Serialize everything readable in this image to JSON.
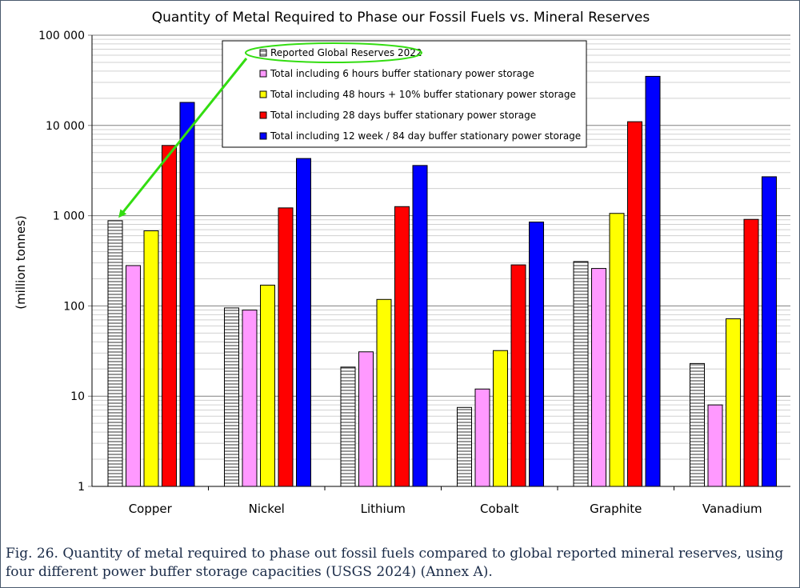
{
  "caption": "Fig. 26. Quantity of metal required to phase out fossil fuels compared to global reported mineral reserves, using four different power buffer storage capacities (USGS 2024) (Annex A).",
  "chart_data": {
    "type": "bar",
    "title": "Quantity of Metal Required to Phase our Fossil Fuels vs. Mineral Reserves",
    "xlabel": "",
    "ylabel": "(million tonnes)",
    "yscale": "log",
    "ylim": [
      1,
      100000
    ],
    "ticks": [
      "1",
      "10",
      "100",
      "1 000",
      "10 000",
      "100 000"
    ],
    "grid": true,
    "legend_position": "top-center",
    "categories": [
      "Copper",
      "Nickel",
      "Lithium",
      "Cobalt",
      "Graphite",
      "Vanadium"
    ],
    "series": [
      {
        "name": "Reported Global Reserves 2022",
        "color": "#ffffff",
        "pattern": "horizontal-stripes",
        "values": [
          880,
          95,
          21,
          7.5,
          310,
          23
        ]
      },
      {
        "name": "Total including 6 hours buffer stationary power storage",
        "color": "#ff99ff",
        "values": [
          280,
          90,
          31,
          12,
          260,
          8
        ]
      },
      {
        "name": "Total including 48 hours + 10% buffer stationary power storage",
        "color": "#ffff00",
        "values": [
          680,
          170,
          118,
          32,
          1060,
          72
        ]
      },
      {
        "name": "Total including 28 days buffer stationary power storage",
        "color": "#ff0000",
        "values": [
          6000,
          1220,
          1260,
          285,
          11000,
          910
        ]
      },
      {
        "name": "Total including 12 week / 84 day buffer stationary power storage",
        "color": "#0000ff",
        "values": [
          18000,
          4300,
          3600,
          850,
          35000,
          2700
        ]
      }
    ],
    "annotation": {
      "shape": "green-ellipse-and-arrow",
      "color": "#33dd11",
      "highlights": "Reported Global Reserves 2022",
      "points_to": "Copper"
    }
  }
}
